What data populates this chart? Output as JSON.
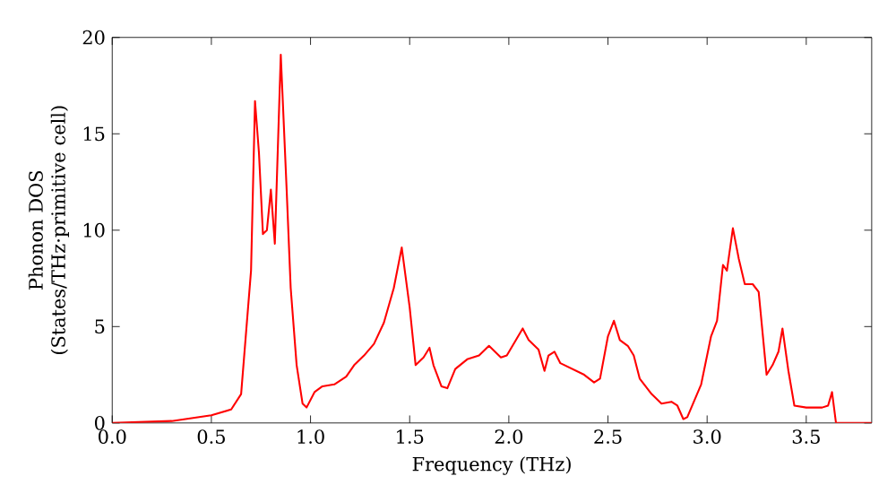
{
  "chart_data": {
    "type": "line",
    "xlabel": "Frequency (THz)",
    "ylabel": "Phonon DOS (States/THz·primitive cell)",
    "xlim": [
      0,
      3.83
    ],
    "ylim": [
      0,
      20
    ],
    "xticks": [
      {
        "value": 0,
        "label": "0.0"
      },
      {
        "value": 0.5,
        "label": "0.5"
      },
      {
        "value": 1,
        "label": "1.0"
      },
      {
        "value": 1.5,
        "label": "1.5"
      },
      {
        "value": 2,
        "label": "2.0"
      },
      {
        "value": 2.5,
        "label": "2.5"
      },
      {
        "value": 3,
        "label": "3.0"
      },
      {
        "value": 3.5,
        "label": "3.5"
      }
    ],
    "yticks": [
      0,
      5,
      10,
      15,
      20
    ],
    "grid": false,
    "series": [
      {
        "color": "#ff0000",
        "x": [
          0.0,
          0.3,
          0.5,
          0.6,
          0.65,
          0.7,
          0.72,
          0.74,
          0.76,
          0.78,
          0.8,
          0.82,
          0.85,
          0.88,
          0.9,
          0.93,
          0.96,
          0.98,
          1.02,
          1.06,
          1.12,
          1.18,
          1.22,
          1.27,
          1.32,
          1.37,
          1.42,
          1.46,
          1.5,
          1.53,
          1.57,
          1.6,
          1.62,
          1.66,
          1.69,
          1.73,
          1.79,
          1.85,
          1.9,
          1.96,
          1.99,
          2.03,
          2.07,
          2.1,
          2.15,
          2.18,
          2.2,
          2.23,
          2.26,
          2.32,
          2.38,
          2.43,
          2.46,
          2.5,
          2.53,
          2.56,
          2.6,
          2.63,
          2.66,
          2.72,
          2.77,
          2.82,
          2.85,
          2.88,
          2.9,
          2.97,
          3.02,
          3.05,
          3.08,
          3.1,
          3.13,
          3.16,
          3.19,
          3.23,
          3.26,
          3.3,
          3.33,
          3.36,
          3.38,
          3.41,
          3.44,
          3.5,
          3.58,
          3.61,
          3.63,
          3.65,
          3.83
        ],
        "values": [
          0,
          0.1,
          0.4,
          0.7,
          1.5,
          7.9,
          16.7,
          14,
          9.8,
          10,
          12.1,
          9.3,
          19.1,
          12,
          7,
          3,
          1.0,
          0.8,
          1.6,
          1.9,
          2.0,
          2.4,
          3.0,
          3.5,
          4.1,
          5.2,
          7.0,
          9.1,
          6,
          3.0,
          3.4,
          3.9,
          3.0,
          1.9,
          1.8,
          2.8,
          3.3,
          3.5,
          4.0,
          3.4,
          3.5,
          4.2,
          4.9,
          4.3,
          3.8,
          2.7,
          3.5,
          3.7,
          3.1,
          2.8,
          2.5,
          2.1,
          2.3,
          4.5,
          5.3,
          4.3,
          4.0,
          3.5,
          2.3,
          1.5,
          1.0,
          1.1,
          0.9,
          0.2,
          0.3,
          2.0,
          4.5,
          5.3,
          8.2,
          7.9,
          10.1,
          8.5,
          7.2,
          7.2,
          6.8,
          2.5,
          3.0,
          3.7,
          4.9,
          2.7,
          0.9,
          0.8,
          0.8,
          0.9,
          1.6,
          0,
          0
        ]
      }
    ]
  }
}
